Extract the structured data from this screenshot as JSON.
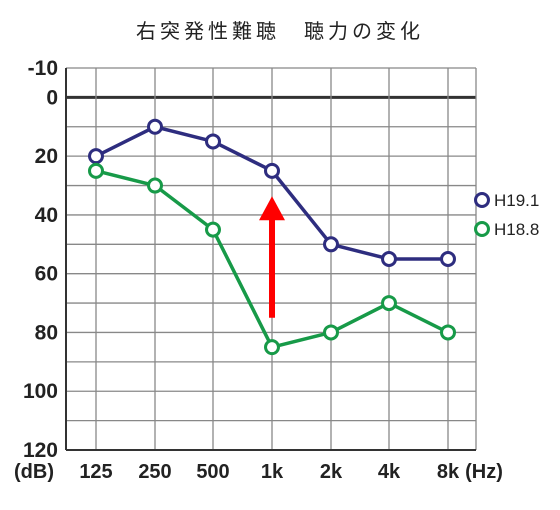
{
  "chart_data": {
    "type": "line",
    "title": "右突発性難聴　聴力の変化",
    "x_unit": "(Hz)",
    "y_unit": "(dB)",
    "categories": [
      "125",
      "250",
      "500",
      "1k",
      "2k",
      "4k",
      "8k"
    ],
    "y_ticks": [
      "-10",
      "0",
      "20",
      "40",
      "60",
      "80",
      "100",
      "120"
    ],
    "ylim": [
      -10,
      120
    ],
    "y_inverted": true,
    "grid": true,
    "legend_placement": "right",
    "series": [
      {
        "name": "H19.1",
        "color": "#2e2d7f",
        "values": [
          20,
          10,
          15,
          25,
          50,
          55,
          55
        ]
      },
      {
        "name": "H18.8",
        "color": "#179a48",
        "values": [
          25,
          30,
          45,
          85,
          80,
          70,
          80
        ]
      }
    ],
    "annotation": {
      "type": "arrow",
      "color": "#ff0000",
      "category": "1k",
      "from_value": 75,
      "to_value": 35
    }
  }
}
